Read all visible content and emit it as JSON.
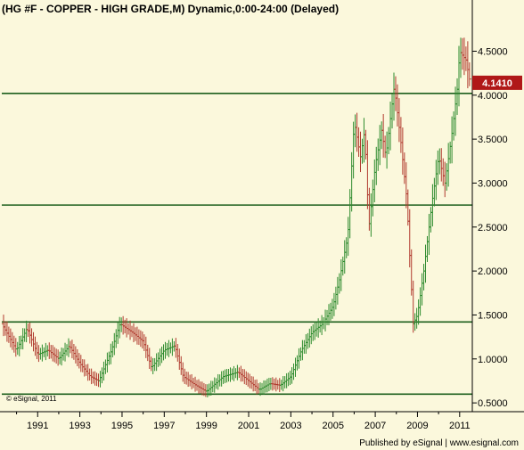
{
  "chart_data": {
    "type": "candlestick",
    "title": "(HG #F - COPPER - HIGH GRADE,M) Dynamic,0:00-24:00 (Delayed)",
    "xlabel": "",
    "ylabel": "",
    "x_range": [
      1989.3,
      2011.6
    ],
    "ylim": [
      0.4,
      4.9
    ],
    "x_tick_labels": [
      "1991",
      "1993",
      "1995",
      "1997",
      "1999",
      "2001",
      "2003",
      "2005",
      "2007",
      "2009",
      "2011"
    ],
    "x_tick_values": [
      1991,
      1993,
      1995,
      1997,
      1999,
      2001,
      2003,
      2005,
      2007,
      2009,
      2011
    ],
    "y_tick_labels": [
      "4.5000",
      "4.0000",
      "3.5000",
      "3.0000",
      "2.5000",
      "2.0000",
      "1.5000",
      "1.0000",
      "0.5000"
    ],
    "y_tick_values": [
      4.5,
      4.0,
      3.5,
      3.0,
      2.5,
      2.0,
      1.5,
      1.0,
      0.5
    ],
    "horizontal_lines": [
      4.02,
      2.75,
      1.42,
      0.6
    ],
    "last_price_label": "4.1410",
    "last_price": 4.141,
    "anchors": [
      [
        1989.3,
        1.4
      ],
      [
        1990.0,
        1.1
      ],
      [
        1990.5,
        1.35
      ],
      [
        1991.0,
        1.05
      ],
      [
        1991.5,
        1.1
      ],
      [
        1992.0,
        1.0
      ],
      [
        1992.5,
        1.15
      ],
      [
        1993.0,
        0.95
      ],
      [
        1993.5,
        0.8
      ],
      [
        1993.9,
        0.75
      ],
      [
        1994.5,
        1.1
      ],
      [
        1994.9,
        1.4
      ],
      [
        1995.5,
        1.3
      ],
      [
        1996.0,
        1.2
      ],
      [
        1996.4,
        0.9
      ],
      [
        1997.0,
        1.1
      ],
      [
        1997.5,
        1.15
      ],
      [
        1997.9,
        0.8
      ],
      [
        1998.5,
        0.7
      ],
      [
        1999.0,
        0.63
      ],
      [
        1999.8,
        0.8
      ],
      [
        2000.5,
        0.85
      ],
      [
        2001.0,
        0.75
      ],
      [
        2001.5,
        0.65
      ],
      [
        2002.0,
        0.72
      ],
      [
        2002.5,
        0.7
      ],
      [
        2003.0,
        0.8
      ],
      [
        2003.5,
        1.1
      ],
      [
        2004.0,
        1.3
      ],
      [
        2004.5,
        1.4
      ],
      [
        2005.0,
        1.6
      ],
      [
        2005.3,
        1.9
      ],
      [
        2005.7,
        2.4
      ],
      [
        2006.0,
        3.7
      ],
      [
        2006.3,
        3.3
      ],
      [
        2006.5,
        3.6
      ],
      [
        2006.7,
        2.5
      ],
      [
        2007.0,
        3.2
      ],
      [
        2007.3,
        3.6
      ],
      [
        2007.5,
        3.3
      ],
      [
        2007.9,
        4.1
      ],
      [
        2008.2,
        3.5
      ],
      [
        2008.5,
        2.8
      ],
      [
        2008.8,
        1.4
      ],
      [
        2009.0,
        1.5
      ],
      [
        2009.3,
        2.0
      ],
      [
        2009.7,
        2.8
      ],
      [
        2010.0,
        3.3
      ],
      [
        2010.3,
        3.0
      ],
      [
        2010.6,
        3.5
      ],
      [
        2010.9,
        4.1
      ],
      [
        2011.0,
        4.5
      ],
      [
        2011.3,
        4.4
      ],
      [
        2011.5,
        4.14
      ]
    ]
  },
  "credit_small": "© eSignal, 2011",
  "publisher_credit": "Published by eSignal | www.esignal.com",
  "colors": {
    "background": "#fbf8dc",
    "hline": "#1c5f1c",
    "up_bar": "#2e8b2e",
    "down_bar": "#b03a2e",
    "price_box": "#b01818",
    "axis": "#000000"
  }
}
